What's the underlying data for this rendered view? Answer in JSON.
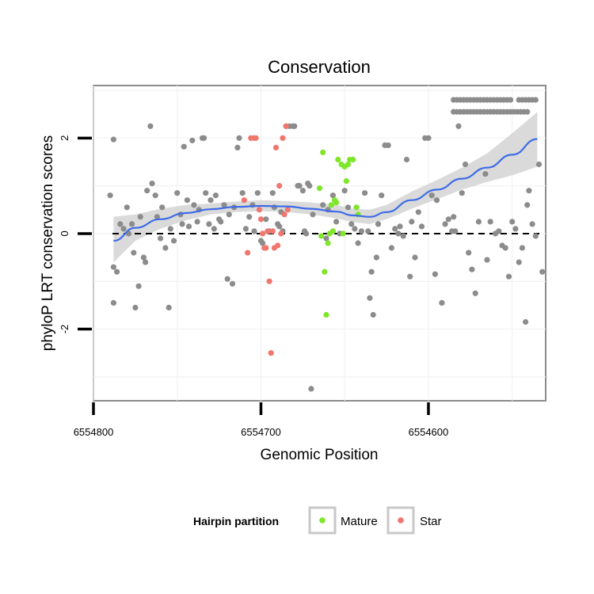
{
  "chart_data": {
    "type": "scatter",
    "title": "Conservation",
    "xlabel": "Genomic Position",
    "ylabel": "phyloP LRT conservation scores",
    "x_reversed": true,
    "xlim": [
      6554800,
      6554530
    ],
    "ylim": [
      -3.5,
      3.1
    ],
    "x_ticks": [
      6554800,
      6554700,
      6554600
    ],
    "x_tick_labels": [
      "6554800",
      "6554700",
      "6554600"
    ],
    "y_ticks": [
      -2,
      0,
      2
    ],
    "y_tick_labels": [
      "-2",
      "0",
      "2"
    ],
    "reference_line": {
      "y": 0,
      "style": "dashed"
    },
    "grid": true,
    "legend": {
      "title": "Hairpin partition",
      "placement": "bottom",
      "entries": [
        {
          "name": "Mature",
          "color": "#7FE62A"
        },
        {
          "name": "Star",
          "color": "#F0776E"
        }
      ]
    },
    "colors": {
      "other": "#8C8C8C",
      "mature": "#7FE62A",
      "star": "#F0776E",
      "smooth": "#3D6BE8",
      "band": "#D3D3D3"
    },
    "series": [
      {
        "group": "other",
        "points": [
          [
            6554788,
            1.97
          ],
          [
            6554790,
            0.8
          ],
          [
            6554788,
            -0.7
          ],
          [
            6554786,
            -0.8
          ],
          [
            6554788,
            -1.45
          ],
          [
            6554784,
            0.2
          ],
          [
            6554782,
            0.1
          ],
          [
            6554780,
            0.55
          ],
          [
            6554779,
            0.0
          ],
          [
            6554777,
            0.2
          ],
          [
            6554776,
            -0.4
          ],
          [
            6554775,
            -1.55
          ],
          [
            6554773,
            -1.1
          ],
          [
            6554772,
            0.35
          ],
          [
            6554770,
            -0.5
          ],
          [
            6554769,
            -0.6
          ],
          [
            6554768,
            0.9
          ],
          [
            6554766,
            2.25
          ],
          [
            6554765,
            1.05
          ],
          [
            6554763,
            0.8
          ],
          [
            6554762,
            0.35
          ],
          [
            6554760,
            -0.1
          ],
          [
            6554759,
            0.55
          ],
          [
            6554757,
            -0.3
          ],
          [
            6554755,
            -1.55
          ],
          [
            6554754,
            0.1
          ],
          [
            6554752,
            -0.15
          ],
          [
            6554750,
            0.85
          ],
          [
            6554748,
            0.4
          ],
          [
            6554747,
            0.2
          ],
          [
            6554746,
            1.82
          ],
          [
            6554744,
            0.7
          ],
          [
            6554743,
            0.15
          ],
          [
            6554741,
            1.95
          ],
          [
            6554740,
            0.6
          ],
          [
            6554738,
            0.25
          ],
          [
            6554737,
            0.5
          ],
          [
            6554735,
            2.0
          ],
          [
            6554734,
            2.0
          ],
          [
            6554733,
            0.85
          ],
          [
            6554731,
            0.2
          ],
          [
            6554730,
            0.7
          ],
          [
            6554728,
            0.1
          ],
          [
            6554727,
            0.8
          ],
          [
            6554725,
            0.3
          ],
          [
            6554724,
            0.25
          ],
          [
            6554722,
            0.6
          ],
          [
            6554720,
            -0.95
          ],
          [
            6554719,
            0.4
          ],
          [
            6554717,
            -1.05
          ],
          [
            6554716,
            0.55
          ],
          [
            6554714,
            1.8
          ],
          [
            6554713,
            2.0
          ],
          [
            6554711,
            0.85
          ],
          [
            6554709,
            0.1
          ],
          [
            6554707,
            0.35
          ],
          [
            6554705,
            0.6
          ],
          [
            6554704,
            0.05
          ],
          [
            6554702,
            0.85
          ],
          [
            6554700,
            -0.15
          ],
          [
            6554699,
            -0.2
          ],
          [
            6554697,
            0.3
          ],
          [
            6554695,
            0.05
          ],
          [
            6554693,
            0.85
          ],
          [
            6554692,
            0.55
          ],
          [
            6554690,
            0.2
          ],
          [
            6554689,
            0.15
          ],
          [
            6554688,
            0.45
          ],
          [
            6554687,
            0.05
          ],
          [
            6554685,
            2.25
          ],
          [
            6554683,
            2.25
          ],
          [
            6554681,
            2.25
          ],
          [
            6554680,
            2.25
          ],
          [
            6554678,
            1.0
          ],
          [
            6554677,
            1.0
          ],
          [
            6554675,
            0.9
          ],
          [
            6554674,
            0.05
          ],
          [
            6554673,
            0.0
          ],
          [
            6554672,
            1.05
          ],
          [
            6554671,
            1.0
          ],
          [
            6554670,
            -3.25
          ],
          [
            6554669,
            0.4
          ],
          [
            6554663,
            0.6
          ],
          [
            6554661,
            -0.1
          ],
          [
            6554660,
            0.5
          ],
          [
            6554657,
            0.8
          ],
          [
            6554655,
            0.25
          ],
          [
            6554653,
            0.0
          ],
          [
            6554650,
            0.9
          ],
          [
            6554648,
            0.55
          ],
          [
            6554646,
            0.2
          ],
          [
            6554644,
            0.1
          ],
          [
            6554642,
            -0.2
          ],
          [
            6554640,
            0.05
          ],
          [
            6554638,
            0.85
          ],
          [
            6554636,
            0.05
          ],
          [
            6554635,
            -1.35
          ],
          [
            6554634,
            -0.8
          ],
          [
            6554633,
            -1.7
          ],
          [
            6554631,
            -0.5
          ],
          [
            6554630,
            0.2
          ],
          [
            6554628,
            0.8
          ],
          [
            6554626,
            1.85
          ],
          [
            6554624,
            1.85
          ],
          [
            6554622,
            -0.3
          ],
          [
            6554620,
            0.1
          ],
          [
            6554618,
            0.0
          ],
          [
            6554617,
            0.15
          ],
          [
            6554615,
            -0.05
          ],
          [
            6554613,
            1.55
          ],
          [
            6554611,
            -0.9
          ],
          [
            6554610,
            0.25
          ],
          [
            6554608,
            -0.5
          ],
          [
            6554606,
            0.45
          ],
          [
            6554604,
            0.15
          ],
          [
            6554602,
            2.0
          ],
          [
            6554600,
            2.0
          ],
          [
            6554598,
            0.8
          ],
          [
            6554596,
            -0.85
          ],
          [
            6554595,
            0.7
          ],
          [
            6554592,
            -1.45
          ],
          [
            6554590,
            0.2
          ],
          [
            6554588,
            0.3
          ],
          [
            6554586,
            0.05
          ],
          [
            6554585,
            0.35
          ],
          [
            6554584,
            0.05
          ],
          [
            6554582,
            2.25
          ],
          [
            6554580,
            0.85
          ],
          [
            6554578,
            1.45
          ],
          [
            6554576,
            -0.4
          ],
          [
            6554574,
            -0.75
          ],
          [
            6554572,
            -1.25
          ],
          [
            6554570,
            0.25
          ],
          [
            6554566,
            1.25
          ],
          [
            6554565,
            -0.55
          ],
          [
            6554563,
            0.25
          ],
          [
            6554560,
            0.0
          ],
          [
            6554558,
            0.05
          ],
          [
            6554556,
            -0.25
          ],
          [
            6554554,
            -0.3
          ],
          [
            6554552,
            -0.9
          ],
          [
            6554550,
            0.25
          ],
          [
            6554548,
            0.1
          ],
          [
            6554546,
            -0.6
          ],
          [
            6554544,
            -0.3
          ],
          [
            6554542,
            -1.85
          ],
          [
            6554541,
            0.6
          ],
          [
            6554540,
            0.9
          ],
          [
            6554538,
            0.2
          ],
          [
            6554536,
            -0.05
          ],
          [
            6554534,
            1.45
          ],
          [
            6554532,
            -0.8
          ],
          [
            6554585,
            2.55
          ],
          [
            6554583,
            2.55
          ],
          [
            6554581,
            2.55
          ],
          [
            6554579,
            2.55
          ],
          [
            6554577,
            2.55
          ],
          [
            6554575,
            2.55
          ],
          [
            6554573,
            2.55
          ],
          [
            6554571,
            2.55
          ],
          [
            6554569,
            2.55
          ],
          [
            6554567,
            2.55
          ],
          [
            6554565,
            2.55
          ],
          [
            6554563,
            2.55
          ],
          [
            6554561,
            2.55
          ],
          [
            6554559,
            2.55
          ],
          [
            6554557,
            2.55
          ],
          [
            6554555,
            2.55
          ],
          [
            6554553,
            2.55
          ],
          [
            6554551,
            2.55
          ],
          [
            6554549,
            2.55
          ],
          [
            6554547,
            2.55
          ],
          [
            6554545,
            2.55
          ],
          [
            6554543,
            2.55
          ],
          [
            6554541,
            2.55
          ],
          [
            6554585,
            2.8
          ],
          [
            6554583,
            2.8
          ],
          [
            6554581,
            2.8
          ],
          [
            6554579,
            2.8
          ],
          [
            6554577,
            2.8
          ],
          [
            6554575,
            2.8
          ],
          [
            6554573,
            2.8
          ],
          [
            6554571,
            2.8
          ],
          [
            6554569,
            2.8
          ],
          [
            6554567,
            2.8
          ],
          [
            6554565,
            2.8
          ],
          [
            6554563,
            2.8
          ],
          [
            6554561,
            2.8
          ],
          [
            6554559,
            2.8
          ],
          [
            6554557,
            2.8
          ],
          [
            6554555,
            2.8
          ],
          [
            6554553,
            2.8
          ],
          [
            6554551,
            2.8
          ],
          [
            6554546,
            2.8
          ],
          [
            6554544,
            2.8
          ],
          [
            6554542,
            2.8
          ],
          [
            6554540,
            2.8
          ],
          [
            6554538,
            2.8
          ],
          [
            6554536,
            2.8
          ]
        ]
      },
      {
        "name": "Mature",
        "group": "mature",
        "points": [
          [
            6554665,
            0.95
          ],
          [
            6554664,
            -0.05
          ],
          [
            6554663,
            1.7
          ],
          [
            6554662,
            -0.8
          ],
          [
            6554661,
            -1.7
          ],
          [
            6554660,
            -0.2
          ],
          [
            6554659,
            0.0
          ],
          [
            6554658,
            0.6
          ],
          [
            6554657,
            0.05
          ],
          [
            6554656,
            0.7
          ],
          [
            6554655,
            0.65
          ],
          [
            6554654,
            1.55
          ],
          [
            6554652,
            1.45
          ],
          [
            6554651,
            0.0
          ],
          [
            6554650,
            1.4
          ],
          [
            6554649,
            1.1
          ],
          [
            6554648,
            1.45
          ],
          [
            6554647,
            1.55
          ],
          [
            6554645,
            1.55
          ],
          [
            6554643,
            0.55
          ],
          [
            6554642,
            0.4
          ]
        ]
      },
      {
        "name": "Star",
        "group": "star",
        "points": [
          [
            6554710,
            0.7
          ],
          [
            6554708,
            -0.4
          ],
          [
            6554706,
            2.0
          ],
          [
            6554704,
            2.0
          ],
          [
            6554703,
            2.0
          ],
          [
            6554701,
            0.5
          ],
          [
            6554700,
            0.3
          ],
          [
            6554699,
            0.0
          ],
          [
            6554698,
            -0.3
          ],
          [
            6554697,
            -0.3
          ],
          [
            6554696,
            0.05
          ],
          [
            6554695,
            -1.0
          ],
          [
            6554694,
            -2.5
          ],
          [
            6554693,
            0.05
          ],
          [
            6554692,
            -0.3
          ],
          [
            6554691,
            1.8
          ],
          [
            6554690,
            -0.25
          ],
          [
            6554689,
            1.0
          ],
          [
            6554688,
            0.0
          ],
          [
            6554687,
            2.0
          ],
          [
            6554686,
            0.4
          ],
          [
            6554685,
            2.25
          ],
          [
            6554684,
            0.5
          ]
        ]
      }
    ],
    "smooth": [
      [
        6554788,
        -0.15
      ],
      [
        6554775,
        0.12
      ],
      [
        6554760,
        0.3
      ],
      [
        6554745,
        0.43
      ],
      [
        6554730,
        0.51
      ],
      [
        6554715,
        0.56
      ],
      [
        6554700,
        0.58
      ],
      [
        6554685,
        0.57
      ],
      [
        6554670,
        0.52
      ],
      [
        6554655,
        0.46
      ],
      [
        6554645,
        0.38
      ],
      [
        6554635,
        0.35
      ],
      [
        6554625,
        0.45
      ],
      [
        6554610,
        0.7
      ],
      [
        6554595,
        0.92
      ],
      [
        6554580,
        1.15
      ],
      [
        6554565,
        1.38
      ],
      [
        6554550,
        1.65
      ],
      [
        6554535,
        1.98
      ]
    ],
    "band": [
      [
        6554788,
        -0.6,
        0.35
      ],
      [
        6554775,
        -0.15,
        0.4
      ],
      [
        6554760,
        0.1,
        0.52
      ],
      [
        6554745,
        0.28,
        0.6
      ],
      [
        6554730,
        0.4,
        0.63
      ],
      [
        6554715,
        0.45,
        0.67
      ],
      [
        6554700,
        0.47,
        0.7
      ],
      [
        6554685,
        0.45,
        0.68
      ],
      [
        6554670,
        0.4,
        0.65
      ],
      [
        6554655,
        0.32,
        0.6
      ],
      [
        6554645,
        0.24,
        0.52
      ],
      [
        6554635,
        0.2,
        0.5
      ],
      [
        6554625,
        0.3,
        0.6
      ],
      [
        6554610,
        0.52,
        0.88
      ],
      [
        6554595,
        0.72,
        1.12
      ],
      [
        6554580,
        0.92,
        1.38
      ],
      [
        6554565,
        1.08,
        1.68
      ],
      [
        6554550,
        1.22,
        2.1
      ],
      [
        6554535,
        1.4,
        2.55
      ]
    ]
  }
}
